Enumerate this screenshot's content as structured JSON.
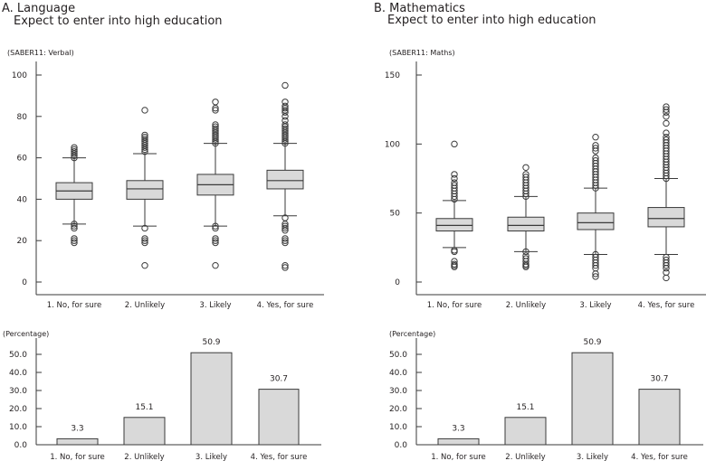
{
  "panels": [
    {
      "title": "A. Language",
      "subtitle": "Expect to enter into high education"
    },
    {
      "title": "B. Mathematics",
      "subtitle": "Expect to enter into high education"
    }
  ],
  "colors": {
    "box_fill": "#d9d9d9",
    "stroke": "#3a3a3a",
    "outlier": "#3a3a3a",
    "text": "#231f20"
  },
  "chart_data": [
    {
      "type": "box",
      "panel": "A",
      "ylabel": "(SABER11: Verbal)",
      "ylim": [
        0,
        100
      ],
      "yticks": [
        0,
        20,
        40,
        60,
        80,
        100
      ],
      "categories": [
        "1. No, for sure",
        "2. Unlikely",
        "3. Likely",
        "4. Yes, for sure"
      ],
      "boxes": [
        {
          "whisker_low": 28,
          "q1": 40,
          "median": 44,
          "q3": 48,
          "whisker_high": 60,
          "outliers": [
            19,
            20,
            21,
            26,
            27,
            28,
            60,
            61,
            62,
            63,
            64,
            65
          ]
        },
        {
          "whisker_low": 27,
          "q1": 40,
          "median": 45,
          "q3": 49,
          "whisker_high": 62,
          "outliers": [
            8,
            19,
            20,
            21,
            26,
            63,
            64,
            65,
            66,
            67,
            68,
            69,
            70,
            71,
            83
          ]
        },
        {
          "whisker_low": 27,
          "q1": 42,
          "median": 47,
          "q3": 52,
          "whisker_high": 67,
          "outliers": [
            8,
            19,
            20,
            21,
            26,
            27,
            67,
            68,
            69,
            70,
            71,
            72,
            73,
            74,
            75,
            76,
            83,
            84,
            87
          ]
        },
        {
          "whisker_low": 32,
          "q1": 45,
          "median": 49,
          "q3": 54,
          "whisker_high": 67,
          "outliers": [
            7,
            8,
            19,
            20,
            21,
            25,
            26,
            27,
            28,
            31,
            67,
            68,
            69,
            70,
            71,
            72,
            73,
            74,
            75,
            76,
            78,
            80,
            82,
            83,
            84,
            85,
            87,
            95
          ]
        }
      ]
    },
    {
      "type": "box",
      "panel": "B",
      "ylabel": "(SABER11: Maths)",
      "ylim": [
        0,
        150
      ],
      "yticks": [
        0,
        50,
        100,
        150
      ],
      "categories": [
        "1. No, for sure",
        "2. Unlikely",
        "3. Likely",
        "4. Yes, for sure"
      ],
      "boxes": [
        {
          "whisker_low": 25,
          "q1": 37,
          "median": 41,
          "q3": 46,
          "whisker_high": 59,
          "outliers": [
            11,
            12,
            13,
            15,
            22,
            23,
            60,
            62,
            64,
            66,
            68,
            70,
            72,
            75,
            78,
            100
          ]
        },
        {
          "whisker_low": 22,
          "q1": 37,
          "median": 41,
          "q3": 47,
          "whisker_high": 62,
          "outliers": [
            11,
            12,
            13,
            15,
            17,
            19,
            22,
            62,
            64,
            66,
            68,
            70,
            72,
            74,
            76,
            78,
            83
          ]
        },
        {
          "whisker_low": 20,
          "q1": 38,
          "median": 43,
          "q3": 50,
          "whisker_high": 68,
          "outliers": [
            4,
            6,
            10,
            12,
            14,
            16,
            18,
            20,
            68,
            70,
            72,
            74,
            76,
            78,
            80,
            82,
            84,
            86,
            88,
            90,
            95,
            97,
            99,
            105
          ]
        },
        {
          "whisker_low": 20,
          "q1": 40,
          "median": 46,
          "q3": 54,
          "whisker_high": 75,
          "outliers": [
            3,
            7,
            10,
            12,
            14,
            16,
            18,
            75,
            77,
            79,
            81,
            83,
            85,
            87,
            89,
            91,
            93,
            95,
            97,
            99,
            101,
            103,
            105,
            108,
            115,
            120,
            123,
            125,
            127
          ]
        }
      ]
    },
    {
      "type": "bar",
      "panel": "A",
      "ylabel": "(Percentage)",
      "ylim": [
        0,
        50
      ],
      "yticks": [
        "0.0",
        "10.0",
        "20.0",
        "30.0",
        "40.0",
        "50.0"
      ],
      "categories": [
        "1. No, for sure",
        "2. Unlikely",
        "3. Likely",
        "4. Yes, for sure"
      ],
      "values": [
        3.3,
        15.1,
        50.9,
        30.7
      ],
      "labels": [
        "3.3",
        "15.1",
        "50.9",
        "30.7"
      ]
    },
    {
      "type": "bar",
      "panel": "B",
      "ylabel": "(Percentage)",
      "ylim": [
        0,
        50
      ],
      "yticks": [
        "0.0",
        "10.0",
        "20.0",
        "30.0",
        "40.0",
        "50.0"
      ],
      "categories": [
        "1. No, for sure",
        "2. Unlikely",
        "3. Likely",
        "4. Yes, for sure"
      ],
      "values": [
        3.3,
        15.1,
        50.9,
        30.7
      ],
      "labels": [
        "3.3",
        "15.1",
        "50.9",
        "30.7"
      ]
    }
  ]
}
